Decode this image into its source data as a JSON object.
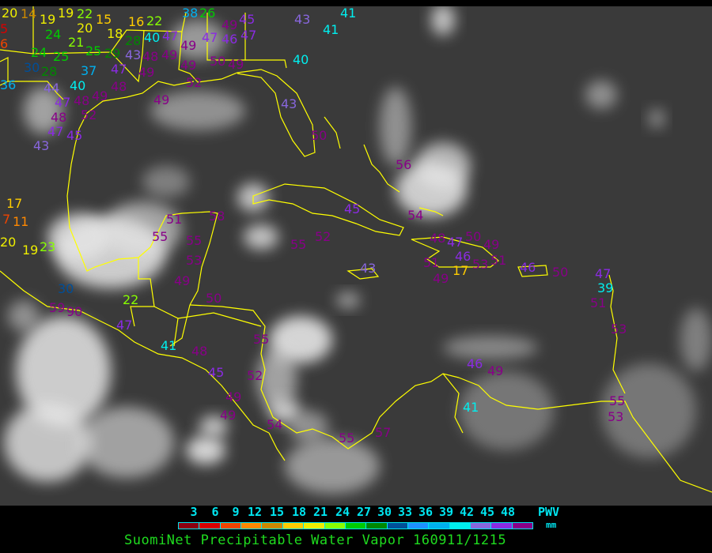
{
  "title": "SuomiNet Precipitable Water Vapor 160911/1215",
  "legend": {
    "unit_label": "PWV",
    "unit": "mm",
    "ticks": [
      "3",
      "6",
      "9",
      "12",
      "15",
      "18",
      "21",
      "24",
      "27",
      "30",
      "33",
      "36",
      "39",
      "42",
      "45",
      "48"
    ],
    "colors": [
      "#8b0010",
      "#d80000",
      "#ee4400",
      "#ff8800",
      "#cc8800",
      "#ffcc00",
      "#eeee00",
      "#88ff00",
      "#00cc00",
      "#008800",
      "#004f99",
      "#1e90ff",
      "#00b0ee",
      "#00eeee",
      "#8866dd",
      "#8a2be2",
      "#880088"
    ]
  },
  "colors": {
    "coastline": "#ffff00",
    "background": "#3a3a3a",
    "clouds": "#e8e8e8"
  },
  "stations": [
    {
      "value": "20"
    },
    {
      "value": "14"
    },
    {
      "value": "5"
    },
    {
      "value": "19"
    },
    {
      "value": "19"
    },
    {
      "value": "24"
    },
    {
      "value": "22"
    },
    {
      "value": "20"
    },
    {
      "value": "15"
    },
    {
      "value": "18"
    },
    {
      "value": "16"
    },
    {
      "value": "22"
    },
    {
      "value": "38"
    },
    {
      "value": "26"
    },
    {
      "value": "6"
    },
    {
      "value": "21"
    },
    {
      "value": "28"
    },
    {
      "value": "40"
    },
    {
      "value": "47"
    },
    {
      "value": "47"
    },
    {
      "value": "46"
    },
    {
      "value": "47"
    },
    {
      "value": "49"
    },
    {
      "value": "45"
    },
    {
      "value": "24"
    },
    {
      "value": "25"
    },
    {
      "value": "25"
    },
    {
      "value": "29"
    },
    {
      "value": "43"
    },
    {
      "value": "48"
    },
    {
      "value": "49"
    },
    {
      "value": "49"
    },
    {
      "value": "30"
    },
    {
      "value": "28"
    },
    {
      "value": "37"
    },
    {
      "value": "47"
    },
    {
      "value": "49"
    },
    {
      "value": "49"
    },
    {
      "value": "50"
    },
    {
      "value": "49"
    },
    {
      "value": "36"
    },
    {
      "value": "44"
    },
    {
      "value": "40"
    },
    {
      "value": "48"
    },
    {
      "value": "52"
    },
    {
      "value": "47"
    },
    {
      "value": "48"
    },
    {
      "value": "49"
    },
    {
      "value": "49"
    },
    {
      "value": "48"
    },
    {
      "value": "52"
    },
    {
      "value": "47"
    },
    {
      "value": "45"
    },
    {
      "value": "43"
    },
    {
      "value": "43"
    },
    {
      "value": "41"
    },
    {
      "value": "41"
    },
    {
      "value": "40"
    },
    {
      "value": "43"
    },
    {
      "value": "50"
    },
    {
      "value": "56"
    },
    {
      "value": "45"
    },
    {
      "value": "54"
    },
    {
      "value": "52"
    },
    {
      "value": "55"
    },
    {
      "value": "48"
    },
    {
      "value": "47"
    },
    {
      "value": "50"
    },
    {
      "value": "46"
    },
    {
      "value": "49"
    },
    {
      "value": "17"
    },
    {
      "value": "51"
    },
    {
      "value": "53"
    },
    {
      "value": "49"
    },
    {
      "value": "51"
    },
    {
      "value": "43"
    },
    {
      "value": "46"
    },
    {
      "value": "50"
    },
    {
      "value": "47"
    },
    {
      "value": "39"
    },
    {
      "value": "51"
    },
    {
      "value": "17"
    },
    {
      "value": "7"
    },
    {
      "value": "11"
    },
    {
      "value": "20"
    },
    {
      "value": "19"
    },
    {
      "value": "23"
    },
    {
      "value": "51"
    },
    {
      "value": "55"
    },
    {
      "value": "58"
    },
    {
      "value": "55"
    },
    {
      "value": "53"
    },
    {
      "value": "49"
    },
    {
      "value": "30"
    },
    {
      "value": "50"
    },
    {
      "value": "22"
    },
    {
      "value": "59"
    },
    {
      "value": "90"
    },
    {
      "value": "47"
    },
    {
      "value": "41"
    },
    {
      "value": "48"
    },
    {
      "value": "55"
    },
    {
      "value": "45"
    },
    {
      "value": "52"
    },
    {
      "value": "49"
    },
    {
      "value": "49"
    },
    {
      "value": "54"
    },
    {
      "value": "55"
    },
    {
      "value": "57"
    },
    {
      "value": "46"
    },
    {
      "value": "49"
    },
    {
      "value": "41"
    },
    {
      "value": "53"
    },
    {
      "value": "55"
    },
    {
      "value": "53"
    }
  ]
}
